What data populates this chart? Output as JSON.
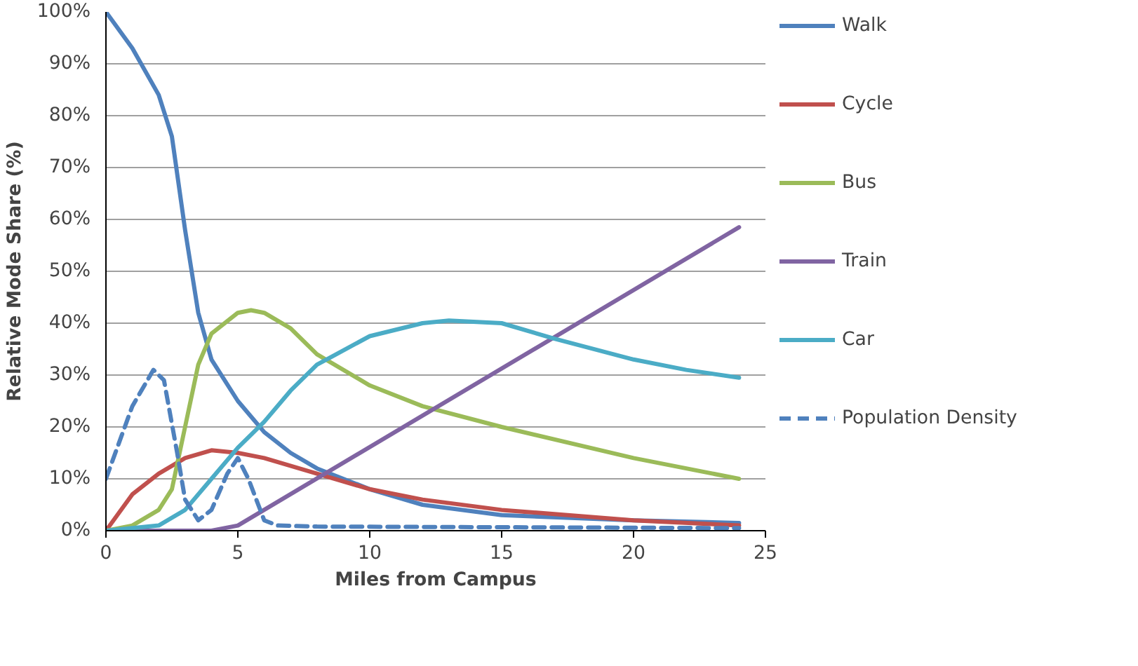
{
  "chart_data": {
    "type": "line",
    "xlabel": "Miles from Campus",
    "ylabel": "Relative Mode Share (%)",
    "xlim": [
      0,
      25
    ],
    "xticks": [
      0,
      5,
      10,
      15,
      20,
      25
    ],
    "ylim": [
      0,
      100
    ],
    "yticks": [
      {
        "value": 0,
        "label": "0%"
      },
      {
        "value": 10,
        "label": "10%"
      },
      {
        "value": 20,
        "label": "20%"
      },
      {
        "value": 30,
        "label": "30%"
      },
      {
        "value": 40,
        "label": "40%"
      },
      {
        "value": 50,
        "label": "50%"
      },
      {
        "value": 60,
        "label": "60%"
      },
      {
        "value": 70,
        "label": "70%"
      },
      {
        "value": 80,
        "label": "80%"
      },
      {
        "value": 90,
        "label": "90%"
      },
      {
        "value": 100,
        "label": "100%"
      }
    ],
    "grid": "y",
    "legend": "right",
    "marker": "none",
    "line_style": "solid",
    "series": [
      {
        "name": "Walk",
        "color": "#4f81bd",
        "x": [
          0,
          1,
          2,
          2.5,
          3,
          3.5,
          4,
          5,
          6,
          7,
          8,
          10,
          12,
          15,
          20,
          24
        ],
        "values": [
          100,
          93,
          84,
          76,
          58,
          42,
          33,
          25,
          19,
          15,
          12,
          8,
          5,
          3,
          2,
          1.5
        ]
      },
      {
        "name": "Cycle",
        "color": "#c0504d",
        "x": [
          0,
          1,
          2,
          3,
          4,
          5,
          6,
          8,
          10,
          12,
          15,
          20,
          24
        ],
        "values": [
          0,
          7,
          11,
          14,
          15.5,
          15,
          14,
          11,
          8,
          6,
          4,
          2,
          1
        ]
      },
      {
        "name": "Bus",
        "color": "#9bbb59",
        "x": [
          0,
          1,
          2,
          2.5,
          3,
          3.5,
          4,
          5,
          5.5,
          6,
          7,
          8,
          10,
          12,
          15,
          20,
          24
        ],
        "values": [
          0,
          1,
          4,
          8,
          20,
          32,
          38,
          42,
          42.5,
          42,
          39,
          34,
          28,
          24,
          20,
          14,
          10
        ]
      },
      {
        "name": "Train",
        "color": "#8064a2",
        "x": [
          0,
          4,
          5,
          24
        ],
        "values": [
          0,
          0,
          1,
          58.5
        ]
      },
      {
        "name": "Car",
        "color": "#4bacc6",
        "x": [
          0,
          2,
          3,
          4,
          5,
          6,
          7,
          8,
          10,
          12,
          13,
          15,
          17,
          20,
          22,
          24
        ],
        "values": [
          0,
          1,
          4,
          10,
          16,
          21,
          27,
          32,
          37.5,
          40,
          40.5,
          40,
          37,
          33,
          31,
          29.5
        ]
      },
      {
        "name": "Population Density",
        "color": "#4f81bd",
        "line_style": "dashed",
        "x": [
          0,
          1,
          1.8,
          2.2,
          2.7,
          3,
          3.5,
          4,
          4.6,
          5,
          5.4,
          6,
          6.5,
          8,
          24
        ],
        "values": [
          10,
          24,
          31,
          29,
          15,
          6,
          2,
          4,
          11,
          14,
          10,
          2,
          1,
          0.8,
          0.5
        ]
      }
    ]
  }
}
